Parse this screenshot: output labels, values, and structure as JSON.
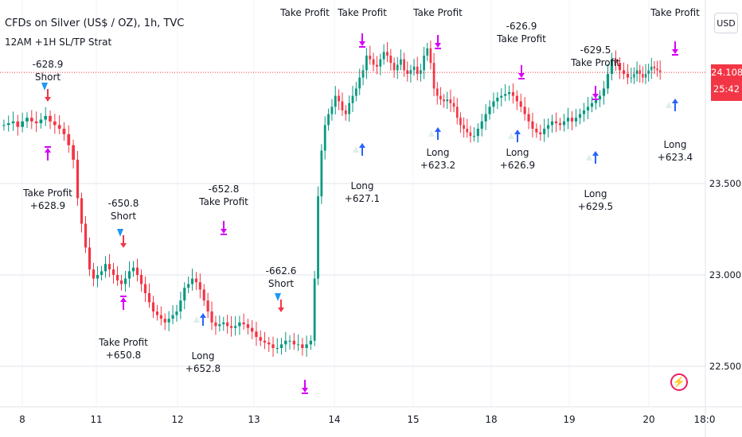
{
  "header": {
    "title": "CFDs on Silver (US$ / OZ), 1h, TVC",
    "strategy": "12AM +1H SL/TP Strat"
  },
  "currency_button": "USD",
  "price_badge": {
    "price": "24.108",
    "countdown": "25:42",
    "color": "#f23645"
  },
  "colors": {
    "up": "#089981",
    "down": "#f23645",
    "grid": "#e0e3eb",
    "long_arrow": "#2962ff",
    "short_arrow": "#f23645",
    "take_profit_arrow": "#d500f9"
  },
  "chart_data": {
    "type": "candlestick",
    "title": "CFDs on Silver (US$ / OZ), 1h, TVC",
    "y_ticks": [
      "23.500",
      "23.000",
      "22.500"
    ],
    "x_ticks": [
      "8",
      "11",
      "12",
      "13",
      "14",
      "15",
      "18",
      "19",
      "20",
      "18:0"
    ],
    "ylim": [
      22.4,
      24.5
    ],
    "current_price": 24.108,
    "close_series": [
      {
        "day": "8",
        "closes": [
          23.82,
          23.83,
          23.84,
          23.81,
          23.84,
          23.86,
          23.84,
          23.83,
          23.85,
          23.87,
          23.84,
          23.82,
          23.8,
          23.77,
          23.71,
          23.63
        ]
      },
      {
        "day": "11",
        "closes": [
          23.42,
          23.28,
          23.15,
          23.03,
          22.98,
          23.0,
          23.02,
          23.06,
          23.03,
          23.0,
          22.97,
          22.95,
          22.98,
          23.02,
          23.04,
          23.0,
          22.95,
          22.9,
          22.85,
          22.8
        ]
      },
      {
        "day": "12",
        "closes": [
          22.78,
          22.76,
          22.74,
          22.76,
          22.78,
          22.8,
          22.86,
          22.93,
          22.95,
          22.98,
          22.96,
          22.92,
          22.86,
          22.8,
          22.74,
          22.72,
          22.73,
          22.74,
          22.72,
          22.71
        ]
      },
      {
        "day": "13",
        "closes": [
          22.72,
          22.74,
          22.73,
          22.71,
          22.69,
          22.66,
          22.64,
          22.63,
          22.62,
          22.6,
          22.6,
          22.62,
          22.64,
          22.64,
          22.62,
          22.62,
          22.6,
          22.62,
          22.64
        ]
      },
      {
        "day": "14",
        "closes": [
          22.98,
          23.43,
          23.68,
          23.82,
          23.88,
          23.92,
          23.98,
          23.95,
          23.9,
          23.88,
          23.94,
          23.98,
          24.02,
          24.08,
          24.12,
          24.2,
          24.18,
          24.15,
          24.14,
          24.18,
          24.22,
          24.2,
          24.16
        ]
      },
      {
        "day": "15",
        "closes": [
          24.12,
          24.15,
          24.18,
          24.12,
          24.1,
          24.12,
          24.14,
          24.1,
          24.12,
          24.2,
          24.24,
          24.16,
          24.02,
          23.98,
          23.96,
          23.95,
          23.96,
          23.94,
          23.92,
          23.86,
          23.82,
          23.8,
          23.78,
          23.76
        ]
      },
      {
        "day": "18",
        "closes": [
          23.76,
          23.8,
          23.84,
          23.88,
          23.92,
          23.95,
          23.97,
          23.98,
          23.99,
          24.0,
          23.98,
          23.95,
          23.92,
          23.88,
          23.84,
          23.8,
          23.78,
          23.77,
          23.8,
          23.82
        ]
      },
      {
        "day": "19",
        "closes": [
          23.84,
          23.83,
          23.82,
          23.84,
          23.86,
          23.84,
          23.86,
          23.88,
          23.9,
          23.92,
          23.94,
          23.96,
          23.98,
          24.02,
          24.1,
          24.18,
          24.16,
          24.12,
          24.1,
          24.08
        ]
      },
      {
        "day": "20",
        "closes": [
          24.08,
          24.1,
          24.12,
          24.1,
          24.08,
          24.1,
          24.12,
          24.14,
          24.13,
          24.12,
          24.11
        ]
      }
    ],
    "markers": [
      {
        "kind": "short",
        "label": "Short",
        "pnl": "-628.9",
        "day": "8"
      },
      {
        "kind": "take_profit",
        "label": "Take Profit",
        "pnl": "+628.9",
        "day": "8"
      },
      {
        "kind": "short",
        "label": "Short",
        "pnl": "-650.8",
        "day": "11"
      },
      {
        "kind": "take_profit",
        "label": "Take Profit",
        "pnl": "+650.8",
        "day": "11"
      },
      {
        "kind": "long",
        "label": "Long",
        "pnl": "+652.8",
        "day": "12"
      },
      {
        "kind": "take_profit",
        "label": "Take Profit",
        "pnl": "-652.8",
        "day": "12"
      },
      {
        "kind": "short",
        "label": "Short",
        "pnl": "-662.6",
        "day": "13"
      },
      {
        "kind": "take_profit",
        "label": "Take Profit",
        "pnl": "",
        "day": "13"
      },
      {
        "kind": "long",
        "label": "Long",
        "pnl": "+627.1",
        "day": "14"
      },
      {
        "kind": "take_profit",
        "label": "Take Profit",
        "pnl": "",
        "day": "14"
      },
      {
        "kind": "long",
        "label": "Long",
        "pnl": "+623.2",
        "day": "15"
      },
      {
        "kind": "take_profit",
        "label": "Take Profit",
        "pnl": "",
        "day": "15"
      },
      {
        "kind": "long",
        "label": "Long",
        "pnl": "+626.9",
        "day": "18"
      },
      {
        "kind": "take_profit",
        "label": "Take Profit",
        "pnl": "-626.9",
        "day": "18"
      },
      {
        "kind": "long",
        "label": "Long",
        "pnl": "+629.5",
        "day": "19"
      },
      {
        "kind": "take_profit",
        "label": "Take Profit",
        "pnl": "-629.5",
        "day": "19"
      },
      {
        "kind": "long",
        "label": "Long",
        "pnl": "+623.4",
        "day": "20"
      },
      {
        "kind": "take_profit",
        "label": "Take Profit",
        "pnl": "",
        "day": "20"
      }
    ]
  }
}
